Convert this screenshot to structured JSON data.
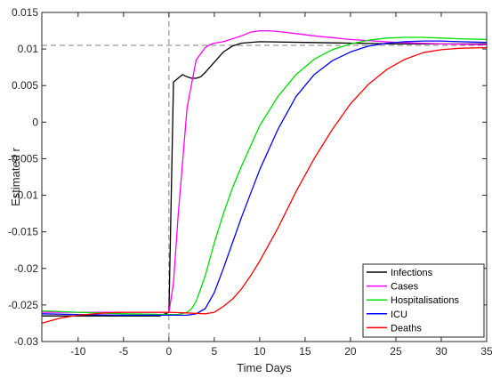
{
  "chart_data": {
    "type": "line",
    "xlabel": "Time Days",
    "ylabel": "Estimated r",
    "xlim": [
      -14,
      35
    ],
    "ylim": [
      -0.03,
      0.015
    ],
    "xticks": [
      -10,
      -5,
      0,
      5,
      10,
      15,
      20,
      25,
      30,
      35
    ],
    "xtick_labels": [
      "-10",
      "-5",
      "0",
      "5",
      "10",
      "15",
      "20",
      "25",
      "30",
      "35"
    ],
    "yticks": [
      -0.03,
      -0.025,
      -0.02,
      -0.015,
      -0.01,
      -0.005,
      0,
      0.005,
      0.01,
      0.015
    ],
    "ytick_labels": [
      "-0.03",
      "-0.025",
      "-0.02",
      "-0.015",
      "-0.01",
      "-0.005",
      "0",
      "0.005",
      "0.01",
      "0.015"
    ],
    "reference_lines": {
      "vertical_x": 0,
      "horizontal_y": 0.0105,
      "style": "dashed",
      "color": "#808080"
    },
    "legend_position": "bottom-right",
    "series": [
      {
        "name": "Infections",
        "color": "#000000",
        "x": [
          -14,
          -10,
          -5,
          -1,
          0,
          0.5,
          1,
          1.5,
          2,
          2.5,
          3,
          3.5,
          4,
          5,
          6,
          7,
          8,
          10,
          15,
          20,
          25,
          30,
          35
        ],
        "y": [
          -0.0265,
          -0.0265,
          -0.0265,
          -0.0265,
          -0.026,
          0.0055,
          0.006,
          0.0065,
          0.0062,
          0.006,
          0.006,
          0.0062,
          0.0068,
          0.0082,
          0.0096,
          0.0104,
          0.0108,
          0.011,
          0.0109,
          0.0108,
          0.0107,
          0.0107,
          0.0107
        ]
      },
      {
        "name": "Cases",
        "color": "#ff00ff",
        "x": [
          -14,
          -10,
          -5,
          0,
          0.5,
          1,
          2,
          3,
          4,
          4.5,
          5,
          6,
          7,
          8,
          9,
          10,
          11,
          12,
          14,
          16,
          20,
          25,
          30,
          35
        ],
        "y": [
          -0.026,
          -0.026,
          -0.026,
          -0.026,
          -0.022,
          -0.013,
          0.002,
          0.0085,
          0.0102,
          0.0106,
          0.0108,
          0.011,
          0.0114,
          0.0118,
          0.0123,
          0.0125,
          0.0125,
          0.0124,
          0.0121,
          0.0118,
          0.0113,
          0.0109,
          0.0107,
          0.0106
        ]
      },
      {
        "name": "Hospitalisations",
        "color": "#00dd00",
        "x": [
          -14,
          -10,
          -5,
          0,
          1,
          2,
          2.5,
          3,
          4,
          5,
          6,
          7,
          8,
          10,
          12,
          14,
          16,
          18,
          20,
          22,
          24,
          26,
          28,
          30,
          32,
          35
        ],
        "y": [
          -0.0258,
          -0.026,
          -0.0262,
          -0.0263,
          -0.0263,
          -0.026,
          -0.0255,
          -0.0245,
          -0.021,
          -0.0165,
          -0.0125,
          -0.009,
          -0.006,
          -0.0005,
          0.0035,
          0.0065,
          0.0086,
          0.0099,
          0.0107,
          0.0112,
          0.0115,
          0.0116,
          0.0116,
          0.0115,
          0.0114,
          0.0113
        ]
      },
      {
        "name": "ICU",
        "color": "#0000ff",
        "x": [
          -14,
          -10,
          -5,
          0,
          2,
          3,
          4,
          5,
          6,
          7,
          8,
          10,
          12,
          14,
          16,
          18,
          20,
          22,
          24,
          26,
          28,
          30,
          32,
          35
        ],
        "y": [
          -0.0262,
          -0.0263,
          -0.0264,
          -0.0264,
          -0.0264,
          -0.0262,
          -0.0255,
          -0.0233,
          -0.02,
          -0.0165,
          -0.013,
          -0.0065,
          -0.001,
          0.0035,
          0.0065,
          0.0084,
          0.0096,
          0.0104,
          0.0108,
          0.011,
          0.0111,
          0.0111,
          0.011,
          0.0109
        ]
      },
      {
        "name": "Deaths",
        "color": "#ff0000",
        "x": [
          -14,
          -12,
          -10,
          -7,
          -5,
          -2,
          0,
          2,
          4,
          5,
          6,
          7,
          8,
          9,
          10,
          12,
          14,
          16,
          18,
          20,
          22,
          24,
          26,
          28,
          30,
          32,
          35
        ],
        "y": [
          -0.0275,
          -0.0268,
          -0.0264,
          -0.0261,
          -0.026,
          -0.026,
          -0.026,
          -0.0261,
          -0.0262,
          -0.026,
          -0.0252,
          -0.0242,
          -0.0228,
          -0.021,
          -0.019,
          -0.0145,
          -0.0095,
          -0.005,
          -0.001,
          0.0025,
          0.0052,
          0.0072,
          0.0086,
          0.0095,
          0.0099,
          0.0101,
          0.0102
        ]
      }
    ]
  }
}
